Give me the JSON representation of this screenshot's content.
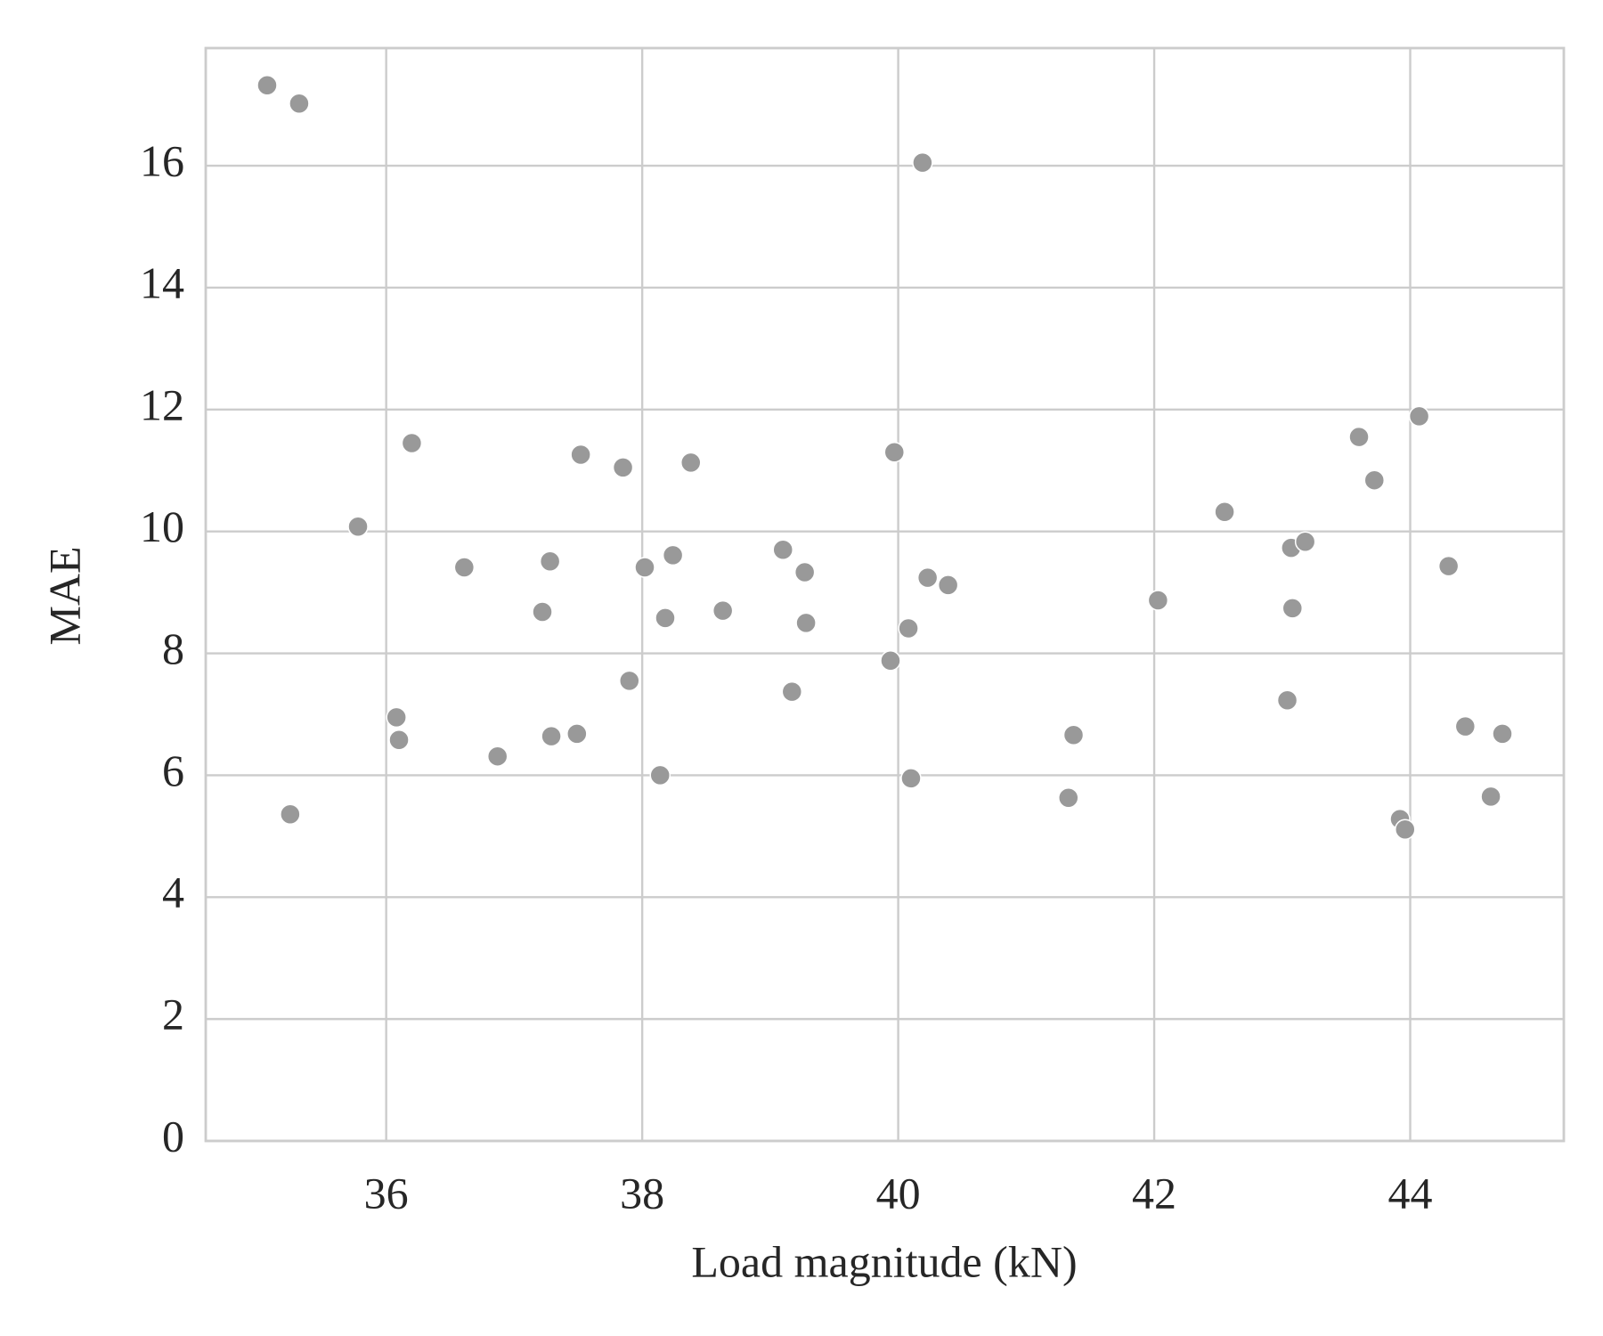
{
  "chart_data": {
    "type": "scatter",
    "x_label": "Load magnitude (kN)",
    "y_label": "MAE",
    "x": [
      35.07,
      35.32,
      35.25,
      35.78,
      36.08,
      36.1,
      36.2,
      36.61,
      36.87,
      37.22,
      37.28,
      37.29,
      37.49,
      37.52,
      37.85,
      37.9,
      38.02,
      38.14,
      38.18,
      38.24,
      38.38,
      38.63,
      39.1,
      39.17,
      39.27,
      39.28,
      39.94,
      39.97,
      40.08,
      40.1,
      40.19,
      40.23,
      40.39,
      41.33,
      41.37,
      42.03,
      42.55,
      43.04,
      43.07,
      43.08,
      43.18,
      43.6,
      43.72,
      43.92,
      43.96,
      44.07,
      44.3,
      44.43,
      44.63,
      44.72
    ],
    "values": [
      17.32,
      17.02,
      5.36,
      10.08,
      6.95,
      6.58,
      11.45,
      9.41,
      6.31,
      8.68,
      9.51,
      6.64,
      6.68,
      11.26,
      11.05,
      7.55,
      9.41,
      6.0,
      8.58,
      9.61,
      11.13,
      8.7,
      9.7,
      7.37,
      9.33,
      8.5,
      7.88,
      11.3,
      8.41,
      5.95,
      16.05,
      9.24,
      9.12,
      5.63,
      6.66,
      8.87,
      10.32,
      7.23,
      9.73,
      8.74,
      9.83,
      11.55,
      10.84,
      5.28,
      5.11,
      11.89,
      9.43,
      6.8,
      5.65,
      6.68
    ],
    "color": "#999999",
    "xlim": [
      34.59,
      45.2
    ],
    "ylim": [
      0,
      17.93
    ],
    "xticks": [
      36,
      38,
      40,
      42,
      44
    ],
    "yticks": [
      0,
      2,
      4,
      6,
      8,
      10,
      12,
      14,
      16
    ],
    "grid": true
  }
}
